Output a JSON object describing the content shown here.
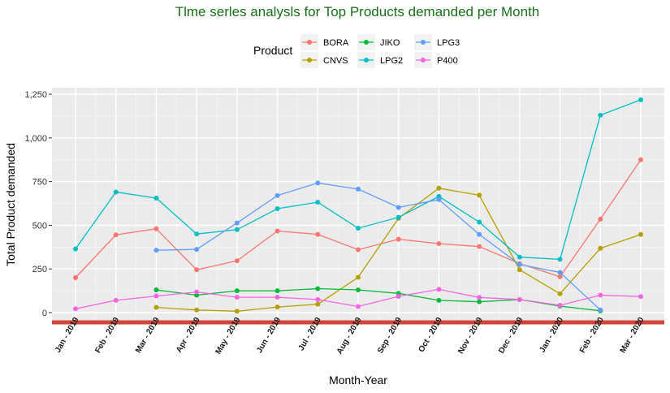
{
  "chart_data": {
    "type": "line",
    "title": "Tlme serles analysls for Top Products demanded per Month",
    "xlabel": "Month-Year",
    "ylabel": "Total Product demanded",
    "legend_title": "Product",
    "legend_position": "top",
    "grid": true,
    "ylim": [
      -50,
      1280
    ],
    "yticks": [
      0,
      250,
      500,
      750,
      1000,
      1250
    ],
    "ytick_labels": [
      "0",
      "250",
      "500",
      "750",
      "1,000",
      "1,250"
    ],
    "categories": [
      "Jan - 2019",
      "Feb - 2019",
      "Mar - 2019",
      "Apr - 2019",
      "May - 2019",
      "Jun - 2019",
      "Jul - 2019",
      "Aug - 2019",
      "Sep - 2019",
      "Oct - 2019",
      "Nov - 2019",
      "Dec - 2019",
      "Jan - 2020",
      "Feb - 2020",
      "Mar - 2020"
    ],
    "series": [
      {
        "name": "BORA",
        "color": "#F8766D",
        "values": [
          200,
          445,
          480,
          245,
          297,
          467,
          448,
          360,
          420,
          395,
          378,
          280,
          205,
          535,
          875
        ]
      },
      {
        "name": "CNVS",
        "color": "#B79F00",
        "values": [
          null,
          null,
          30,
          15,
          8,
          32,
          48,
          202,
          540,
          712,
          672,
          245,
          108,
          368,
          447
        ]
      },
      {
        "name": "JIKO",
        "color": "#00BA38",
        "values": [
          null,
          null,
          130,
          100,
          125,
          125,
          137,
          130,
          110,
          70,
          62,
          75,
          37,
          10,
          null
        ]
      },
      {
        "name": "LPG2",
        "color": "#00BFC4",
        "values": [
          365,
          690,
          655,
          450,
          475,
          595,
          632,
          483,
          545,
          665,
          518,
          318,
          305,
          1130,
          1218
        ]
      },
      {
        "name": "LPG3",
        "color": "#619CFF",
        "values": [
          null,
          null,
          357,
          362,
          513,
          670,
          742,
          707,
          602,
          647,
          448,
          275,
          230,
          15,
          null
        ]
      },
      {
        "name": "P400",
        "color": "#F564E3",
        "values": [
          22,
          70,
          95,
          118,
          88,
          88,
          75,
          35,
          93,
          133,
          87,
          75,
          42,
          100,
          92
        ]
      }
    ],
    "baseline_bar_color": "#d2463a"
  }
}
